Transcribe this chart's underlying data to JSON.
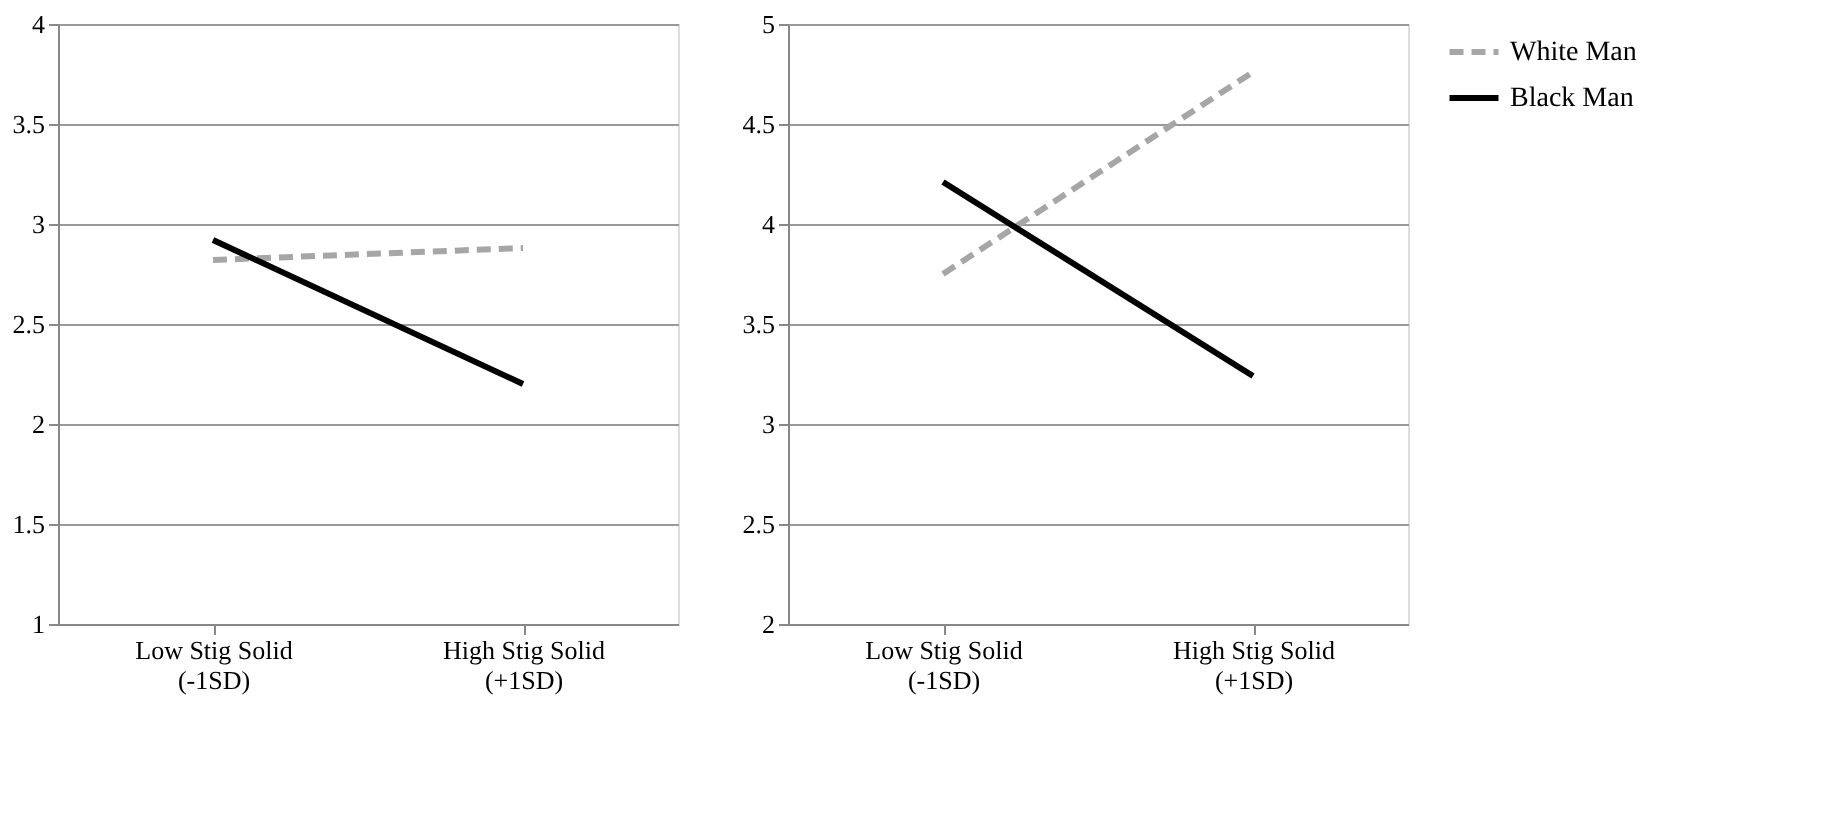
{
  "chart_data": [
    {
      "type": "line",
      "categories": [
        "Low Stig Solid (-1SD)",
        "High Stig Solid (+1SD)"
      ],
      "ylim": [
        1,
        4
      ],
      "yticks": [
        1,
        1.5,
        2,
        2.5,
        3,
        3.5,
        4
      ],
      "grid": "y",
      "legend": "right",
      "series": [
        {
          "name": "White Man",
          "color": "#a6a6a6",
          "line_style": "dashed",
          "values": [
            2.82,
            2.88
          ]
        },
        {
          "name": "Black Man",
          "color": "#000000",
          "line_style": "solid",
          "values": [
            2.92,
            2.2
          ]
        }
      ]
    },
    {
      "type": "line",
      "categories": [
        "Low Stig Solid (-1SD)",
        "High Stig Solid (+1SD)"
      ],
      "ylim": [
        2,
        5
      ],
      "yticks": [
        2,
        2.5,
        3,
        3.5,
        4,
        4.5,
        5
      ],
      "grid": "y",
      "legend": "right",
      "series": [
        {
          "name": "White Man",
          "color": "#a6a6a6",
          "line_style": "dashed",
          "values": [
            3.75,
            4.76
          ]
        },
        {
          "name": "Black Man",
          "color": "#000000",
          "line_style": "solid",
          "values": [
            4.21,
            3.24
          ]
        }
      ]
    }
  ]
}
